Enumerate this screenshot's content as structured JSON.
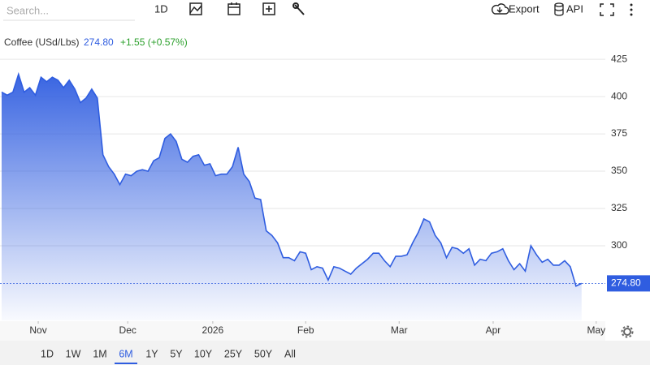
{
  "toolbar": {
    "search": "Search...",
    "interval": "1D",
    "export": "Export",
    "api": "API"
  },
  "header": {
    "name": "Coffee (USd/Lbs)",
    "price": "274.80",
    "change": "+1.55 (+0.57%)"
  },
  "ranges": [
    "1D",
    "1W",
    "1M",
    "6M",
    "1Y",
    "5Y",
    "10Y",
    "25Y",
    "50Y",
    "All"
  ],
  "chart_data": {
    "type": "area",
    "color": "#2f5de0",
    "grid": true,
    "x": [
      0,
      1,
      2,
      3,
      4,
      5,
      6,
      7,
      8,
      9,
      10,
      11,
      12,
      13,
      14,
      15,
      16,
      17,
      18,
      19,
      20,
      21,
      22,
      23,
      24,
      25,
      26,
      27,
      28,
      29,
      30,
      31,
      32,
      33,
      34,
      35,
      36,
      37,
      38,
      39,
      40,
      41,
      42,
      43,
      44,
      45,
      46,
      47,
      48,
      49,
      50,
      51,
      52,
      53,
      54,
      55,
      56,
      57,
      58,
      59,
      60,
      61,
      62,
      63,
      64,
      65,
      66,
      67,
      68,
      69,
      70,
      71,
      72,
      73,
      74,
      75,
      76,
      77,
      78,
      79,
      80,
      81,
      82,
      83,
      84,
      85,
      86,
      87,
      88,
      89,
      90,
      91,
      92,
      93,
      94,
      95,
      96,
      97,
      98,
      99,
      100,
      101,
      102,
      103
    ],
    "values": [
      403,
      401,
      403,
      415,
      403,
      406,
      401,
      413,
      410,
      413,
      411,
      406,
      411,
      405,
      396,
      399,
      405,
      399,
      361,
      353,
      348,
      341,
      348,
      347,
      350,
      351,
      350,
      357,
      359,
      372,
      375,
      370,
      358,
      356,
      360,
      361,
      354,
      355,
      347,
      348,
      348,
      353,
      366,
      348,
      343,
      332,
      331,
      310,
      307,
      302,
      292,
      292,
      290,
      296,
      295,
      284,
      286,
      285,
      277,
      286,
      285,
      283,
      281,
      285,
      288,
      291,
      295,
      295,
      290,
      286,
      293,
      293,
      294,
      302,
      309,
      318,
      316,
      307,
      302,
      292,
      299,
      298,
      295,
      298,
      287,
      291,
      290,
      295,
      296,
      298,
      290,
      284,
      288,
      283,
      300,
      294,
      289,
      291,
      287,
      287,
      290,
      286,
      273,
      274.8
    ],
    "xlim": [
      0,
      107
    ],
    "xticks": [
      {
        "value": 6.5,
        "label": "Nov"
      },
      {
        "value": 22.4,
        "label": "Dec"
      },
      {
        "value": 37.5,
        "label": "2026"
      },
      {
        "value": 54,
        "label": "Feb"
      },
      {
        "value": 70.6,
        "label": "Mar"
      },
      {
        "value": 87.3,
        "label": "Apr"
      },
      {
        "value": 105.6,
        "label": "May"
      }
    ],
    "ylim": [
      250,
      443
    ],
    "yticks": [
      300,
      325,
      350,
      375,
      400,
      425
    ]
  }
}
